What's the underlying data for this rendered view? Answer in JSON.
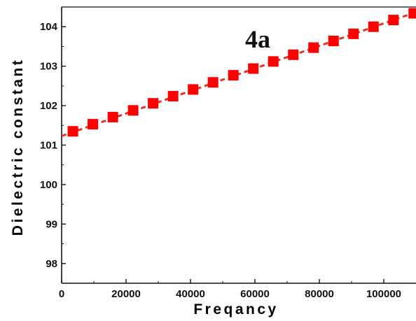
{
  "chart_data": {
    "type": "scatter",
    "title": "",
    "annotation": "4a",
    "xlabel": "Freqancy",
    "ylabel": "Dielectric constant",
    "xlim": [
      0,
      110000
    ],
    "ylim": [
      97.5,
      104.5
    ],
    "xticks": [
      0,
      20000,
      40000,
      60000,
      80000,
      100000
    ],
    "yticks": [
      98,
      99,
      100,
      101,
      102,
      103,
      104
    ],
    "grid": false,
    "legend": "none",
    "series": [
      {
        "x": [
          3500,
          9700,
          15900,
          22200,
          28400,
          34600,
          40800,
          47000,
          53300,
          59500,
          65700,
          71900,
          78200,
          84400,
          90600,
          96800,
          103000,
          109300
        ],
        "y": [
          101.35,
          101.53,
          101.71,
          101.88,
          102.06,
          102.24,
          102.41,
          102.59,
          102.77,
          102.94,
          103.12,
          103.29,
          103.47,
          103.64,
          103.82,
          104.0,
          104.17,
          104.34
        ]
      }
    ],
    "fit_line": {
      "x": [
        0,
        110000
      ],
      "y": [
        101.23,
        104.37
      ]
    },
    "colors": {
      "marker": "#ff0000",
      "fit_line": "#e8302a",
      "axis": "#111111"
    }
  }
}
